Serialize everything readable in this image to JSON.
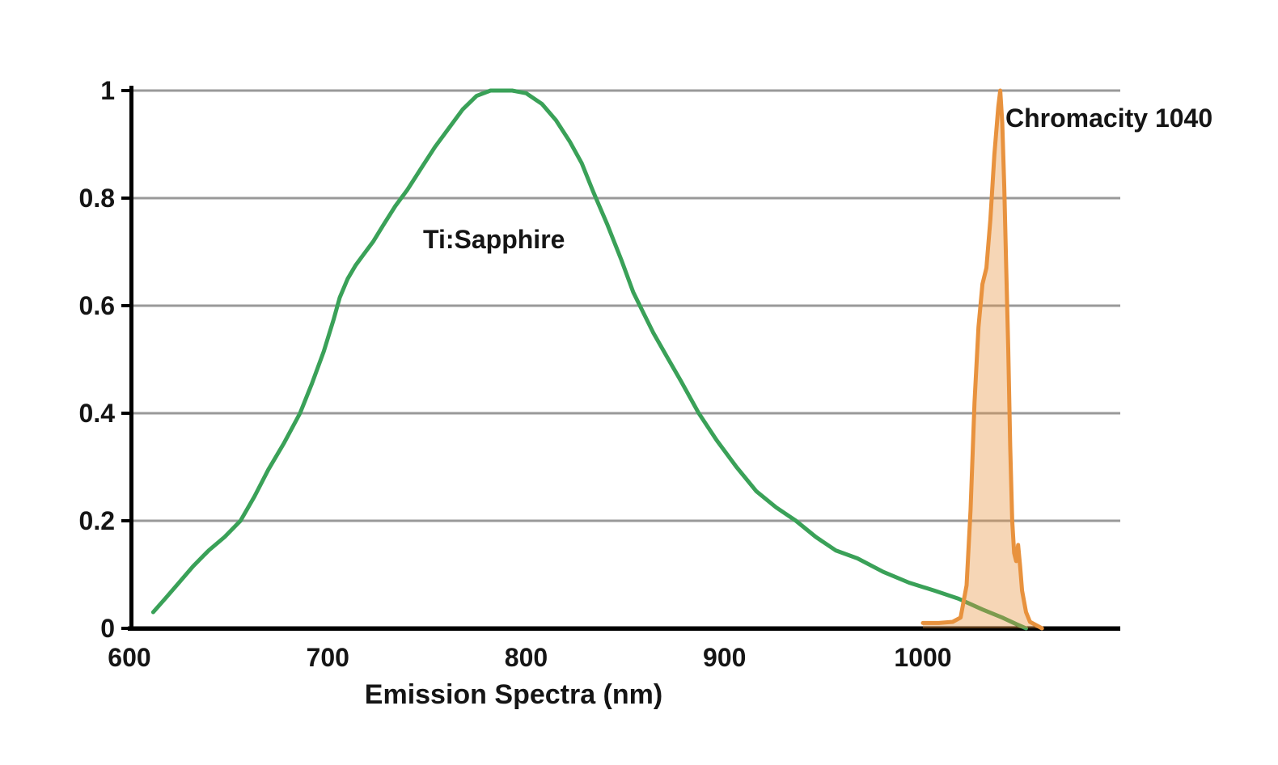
{
  "chart_data": {
    "type": "line",
    "title": "",
    "xlabel": "Emission Spectra (nm)",
    "ylabel": "",
    "xlim": [
      600,
      1100
    ],
    "ylim": [
      0,
      1
    ],
    "x_ticks": [
      600,
      700,
      800,
      900,
      1000
    ],
    "x_tick_labels": [
      "600",
      "700",
      "800",
      "900",
      "1000"
    ],
    "y_ticks": [
      0,
      0.2,
      0.4,
      0.6,
      0.8,
      1
    ],
    "y_tick_labels": [
      "0",
      "0.2",
      "0.4",
      "0.6",
      "0.8",
      "1"
    ],
    "grid": "horizontal",
    "legend_position": "inline-annotations",
    "series": [
      {
        "name": "Ti:Sapphire",
        "color": "#3aa158",
        "style": "line",
        "points": [
          [
            612,
            0.03
          ],
          [
            618,
            0.055
          ],
          [
            625,
            0.085
          ],
          [
            632,
            0.115
          ],
          [
            640,
            0.145
          ],
          [
            648,
            0.17
          ],
          [
            656,
            0.2
          ],
          [
            663,
            0.245
          ],
          [
            670,
            0.295
          ],
          [
            678,
            0.345
          ],
          [
            686,
            0.4
          ],
          [
            692,
            0.455
          ],
          [
            698,
            0.515
          ],
          [
            703,
            0.575
          ],
          [
            706,
            0.615
          ],
          [
            710,
            0.65
          ],
          [
            714,
            0.675
          ],
          [
            718,
            0.695
          ],
          [
            723,
            0.72
          ],
          [
            728,
            0.75
          ],
          [
            734,
            0.785
          ],
          [
            740,
            0.815
          ],
          [
            747,
            0.855
          ],
          [
            754,
            0.895
          ],
          [
            761,
            0.93
          ],
          [
            768,
            0.965
          ],
          [
            775,
            0.99
          ],
          [
            782,
            1.0
          ],
          [
            793,
            1.0
          ],
          [
            800,
            0.995
          ],
          [
            808,
            0.975
          ],
          [
            815,
            0.945
          ],
          [
            822,
            0.905
          ],
          [
            828,
            0.865
          ],
          [
            834,
            0.81
          ],
          [
            841,
            0.75
          ],
          [
            848,
            0.685
          ],
          [
            854,
            0.625
          ],
          [
            858,
            0.595
          ],
          [
            864,
            0.55
          ],
          [
            871,
            0.505
          ],
          [
            878,
            0.46
          ],
          [
            887,
            0.4
          ],
          [
            896,
            0.35
          ],
          [
            906,
            0.3
          ],
          [
            916,
            0.255
          ],
          [
            926,
            0.225
          ],
          [
            936,
            0.2
          ],
          [
            946,
            0.17
          ],
          [
            956,
            0.145
          ],
          [
            967,
            0.13
          ],
          [
            980,
            0.105
          ],
          [
            993,
            0.085
          ],
          [
            1006,
            0.07
          ],
          [
            1018,
            0.055
          ],
          [
            1030,
            0.035
          ],
          [
            1040,
            0.02
          ],
          [
            1047,
            0.008
          ],
          [
            1052,
            0.0
          ]
        ]
      },
      {
        "name": "Chromacity 1040",
        "color": "#e8923e",
        "fill": "rgba(232,146,62,0.38)",
        "style": "line-filled",
        "points": [
          [
            1000,
            0.01
          ],
          [
            1008,
            0.01
          ],
          [
            1015,
            0.012
          ],
          [
            1019,
            0.02
          ],
          [
            1022,
            0.08
          ],
          [
            1024,
            0.22
          ],
          [
            1026,
            0.42
          ],
          [
            1028,
            0.56
          ],
          [
            1030,
            0.64
          ],
          [
            1032,
            0.67
          ],
          [
            1034,
            0.76
          ],
          [
            1036,
            0.88
          ],
          [
            1038,
            0.97
          ],
          [
            1039,
            1.0
          ],
          [
            1040,
            0.94
          ],
          [
            1041,
            0.82
          ],
          [
            1042,
            0.67
          ],
          [
            1043,
            0.52
          ],
          [
            1044,
            0.34
          ],
          [
            1045,
            0.2
          ],
          [
            1046,
            0.14
          ],
          [
            1047,
            0.125
          ],
          [
            1048,
            0.155
          ],
          [
            1049,
            0.115
          ],
          [
            1050,
            0.07
          ],
          [
            1052,
            0.03
          ],
          [
            1054,
            0.012
          ],
          [
            1057,
            0.006
          ],
          [
            1060,
            0.0
          ]
        ]
      }
    ],
    "annotations": [
      {
        "text": "Ti:Sapphire",
        "x_nm": 782,
        "y_val": 0.72
      },
      {
        "text": "Chromacity 1040",
        "x_nm": 1042,
        "y_val": 0.95
      }
    ]
  },
  "colors": {
    "background": "#ffffff",
    "gridline": "#999999",
    "axis": "#000000",
    "text": "#151515",
    "green_series": "#3aa158",
    "orange_series": "#e8923e"
  }
}
